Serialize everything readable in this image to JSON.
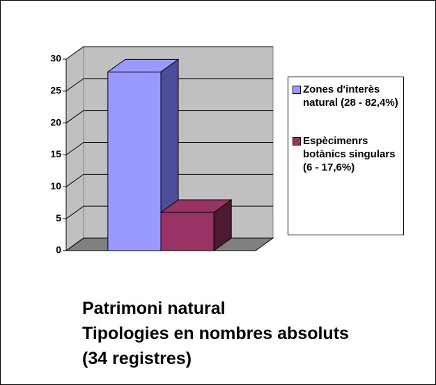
{
  "chart_data": {
    "type": "bar3d",
    "title": [
      "Patrimoni natural",
      "Tipologies en nombres absoluts",
      "(34 registres)"
    ],
    "categories": [
      null
    ],
    "series": [
      {
        "name": "Zones d'interès natural (28 - 82,4%)",
        "color": "#9999ff",
        "side": "#4d4d99",
        "values": [
          28
        ]
      },
      {
        "name": "Espècimenrs botànics singulars (6 - 17,6%)",
        "color": "#993366",
        "side": "#4d1a33",
        "values": [
          6
        ]
      }
    ],
    "ylim": [
      0,
      30
    ],
    "yticks": [
      0,
      5,
      10,
      15,
      20,
      25,
      30
    ],
    "grid": true,
    "legend": "right"
  }
}
